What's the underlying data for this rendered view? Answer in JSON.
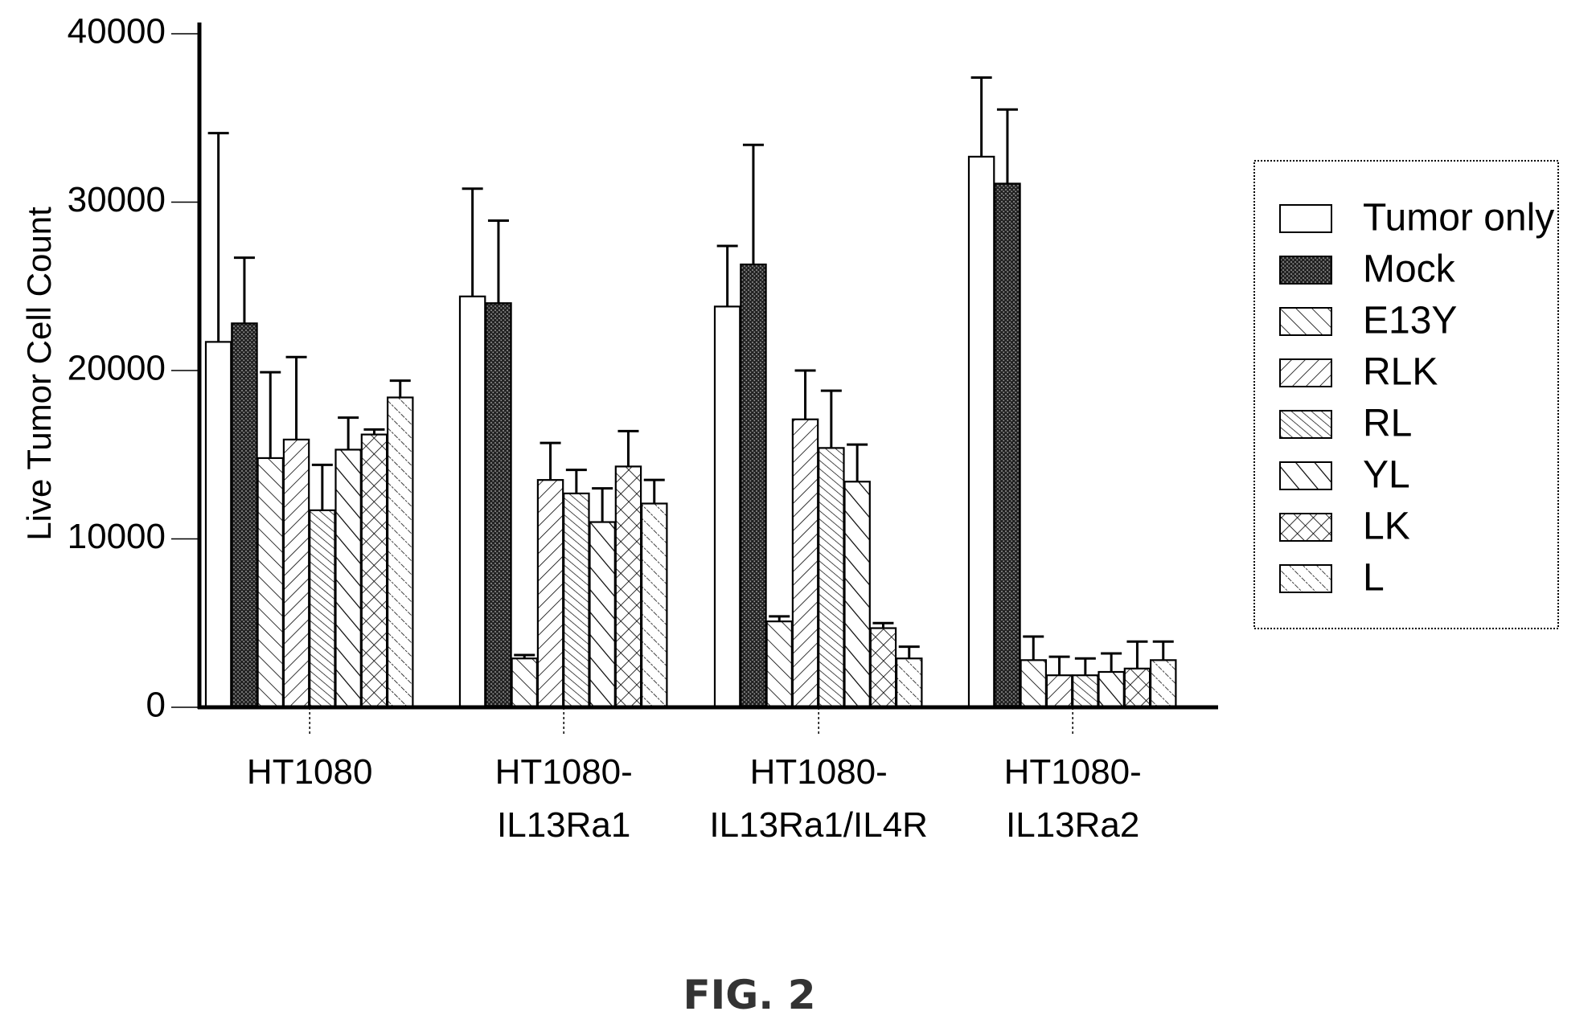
{
  "figure_label": "FIG. 2",
  "chart_data": {
    "type": "bar",
    "title": "",
    "xlabel": "",
    "ylabel": "Live Tumor Cell Count",
    "ylim": [
      0,
      40000
    ],
    "yticks": [
      0,
      10000,
      20000,
      30000,
      40000
    ],
    "grid": false,
    "legend_position": "right",
    "categories": [
      [
        "HT1080"
      ],
      [
        "HT1080-",
        "IL13Ra1"
      ],
      [
        "HT1080-",
        "IL13Ra1/IL4R"
      ],
      [
        "HT1080-",
        "IL13Ra2"
      ]
    ],
    "series": [
      {
        "name": "Tumor only",
        "pattern": "empty",
        "values": [
          21700,
          24400,
          23800,
          32700
        ],
        "errors": [
          12400,
          6400,
          3600,
          4700
        ]
      },
      {
        "name": "Mock",
        "pattern": "dense",
        "values": [
          22800,
          24000,
          26300,
          31100
        ],
        "errors": [
          3900,
          4900,
          7100,
          4400
        ]
      },
      {
        "name": "E13Y",
        "pattern": "diag-coarse",
        "values": [
          14800,
          2900,
          5100,
          2800
        ],
        "errors": [
          5100,
          200,
          300,
          1400
        ]
      },
      {
        "name": "RLK",
        "pattern": "backdiag",
        "values": [
          15900,
          13500,
          17100,
          1900
        ],
        "errors": [
          4900,
          2200,
          2900,
          1100
        ]
      },
      {
        "name": "RL",
        "pattern": "diag-fine",
        "values": [
          11700,
          12700,
          15400,
          1900
        ],
        "errors": [
          2700,
          1400,
          3400,
          1000
        ]
      },
      {
        "name": "YL",
        "pattern": "diag-bold",
        "values": [
          15300,
          11000,
          13400,
          2100
        ],
        "errors": [
          1900,
          2000,
          2200,
          1100
        ]
      },
      {
        "name": "LK",
        "pattern": "cross",
        "values": [
          16200,
          14300,
          4700,
          2300
        ],
        "errors": [
          300,
          2100,
          300,
          1600
        ]
      },
      {
        "name": "L",
        "pattern": "diag-dotted",
        "values": [
          18400,
          12100,
          2900,
          2800
        ],
        "errors": [
          1000,
          1400,
          700,
          1100
        ]
      }
    ]
  }
}
